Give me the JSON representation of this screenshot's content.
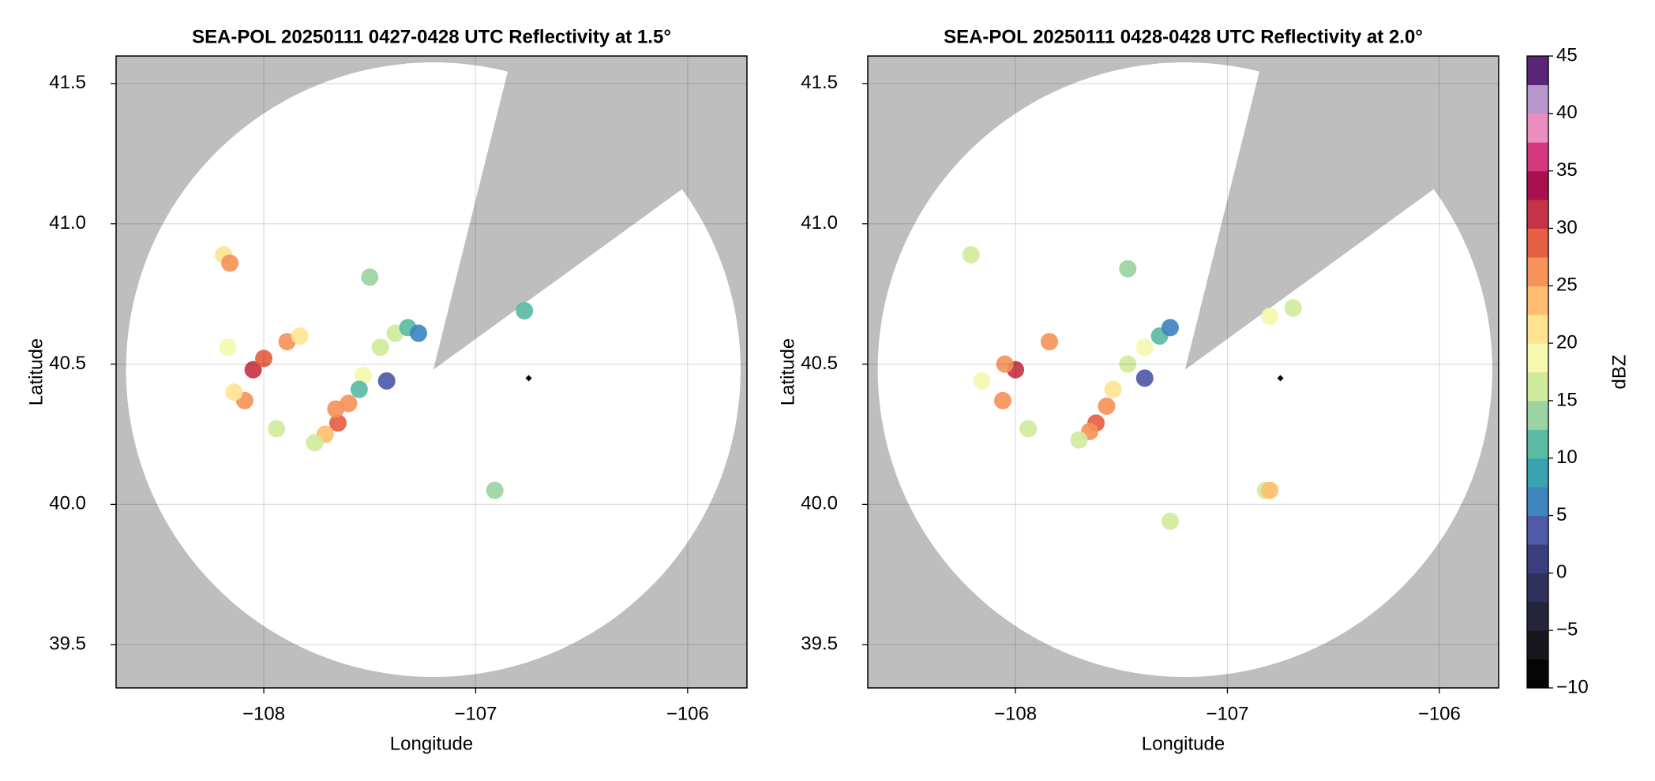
{
  "chart_data": [
    {
      "type": "radar-ppi",
      "title": "SEA-POL 20250111 0427-0428 UTC Reflectivity at 1.5°",
      "xlabel": "Longitude",
      "ylabel": "Latitude",
      "xlim": [
        -108.697,
        -105.72
      ],
      "ylim": [
        39.346,
        41.598
      ],
      "xticks": [
        {
          "value": -108,
          "label": "−108"
        },
        {
          "value": -107,
          "label": "−107"
        },
        {
          "value": -106,
          "label": "−106"
        }
      ],
      "yticks": [
        {
          "value": 39.5,
          "label": "39.5"
        },
        {
          "value": 40,
          "label": "40.0"
        },
        {
          "value": 40.5,
          "label": "40.5"
        },
        {
          "value": 41,
          "label": "41.0"
        },
        {
          "value": 41.5,
          "label": "41.5"
        }
      ],
      "grid": true,
      "coverage": {
        "center": [
          -107.2,
          40.48
        ],
        "radius": [
          1.45,
          1.095
        ],
        "blocked_azimuth": [
          14,
          54
        ]
      },
      "marker": {
        "x": -106.75,
        "y": 40.45
      },
      "echoes": {
        "x": [
          -108.19,
          -108.16,
          -108.05,
          -108.0,
          -108.09,
          -108.14,
          -107.89,
          -107.83,
          -108.17,
          -107.94,
          -107.65,
          -107.71,
          -107.6,
          -107.66,
          -107.53,
          -107.55,
          -107.45,
          -107.38,
          -107.32,
          -107.27,
          -107.42,
          -107.76,
          -107.5,
          -106.77,
          -106.91
        ],
        "y": [
          40.89,
          40.86,
          40.48,
          40.52,
          40.37,
          40.4,
          40.58,
          40.6,
          40.56,
          40.27,
          40.29,
          40.25,
          40.36,
          40.34,
          40.46,
          40.41,
          40.56,
          40.61,
          40.63,
          40.61,
          40.44,
          40.22,
          40.81,
          40.69,
          40.05
        ],
        "values": [
          22,
          27,
          31,
          28,
          27,
          22,
          25,
          20,
          19,
          17,
          28,
          24,
          25,
          27,
          18,
          12,
          16,
          17,
          11,
          5,
          4,
          16,
          14,
          12,
          14
        ]
      }
    },
    {
      "type": "radar-ppi",
      "title": "SEA-POL 20250111 0428-0428 UTC Reflectivity at 2.0°",
      "xlabel": "Longitude",
      "ylabel": "Latitude",
      "xlim": [
        -108.697,
        -105.72
      ],
      "ylim": [
        39.346,
        41.598
      ],
      "xticks": [
        {
          "value": -108,
          "label": "−108"
        },
        {
          "value": -107,
          "label": "−107"
        },
        {
          "value": -106,
          "label": "−106"
        }
      ],
      "yticks": [
        {
          "value": 39.5,
          "label": "39.5"
        },
        {
          "value": 40,
          "label": "40.0"
        },
        {
          "value": 40.5,
          "label": "40.5"
        },
        {
          "value": 41,
          "label": "41.0"
        },
        {
          "value": 41.5,
          "label": "41.5"
        }
      ],
      "grid": true,
      "coverage": {
        "center": [
          -107.2,
          40.48
        ],
        "radius": [
          1.45,
          1.095
        ],
        "blocked_azimuth": [
          14,
          54
        ]
      },
      "marker": {
        "x": -106.75,
        "y": 40.45
      },
      "echoes": {
        "x": [
          -108.21,
          -108.0,
          -108.05,
          -108.06,
          -108.16,
          -107.84,
          -107.94,
          -107.62,
          -107.65,
          -107.57,
          -107.54,
          -107.47,
          -107.39,
          -107.32,
          -107.27,
          -107.39,
          -107.7,
          -107.47,
          -106.8,
          -106.69,
          -106.82,
          -106.8,
          -107.27
        ],
        "y": [
          40.89,
          40.48,
          40.5,
          40.37,
          40.44,
          40.58,
          40.27,
          40.29,
          40.26,
          40.35,
          40.41,
          40.5,
          40.56,
          40.6,
          40.63,
          40.45,
          40.23,
          40.84,
          40.67,
          40.7,
          40.05,
          40.05,
          39.94
        ],
        "values": [
          17,
          31,
          27,
          27,
          19,
          25,
          16,
          29,
          26,
          27,
          21,
          15,
          18,
          10,
          6,
          4,
          15,
          14,
          19,
          17,
          17,
          24,
          17
        ]
      }
    },
    {
      "type": "colorbar",
      "label": "dBZ",
      "lim": [
        -10,
        45
      ],
      "ticks": [
        {
          "value": -10,
          "label": "−10"
        },
        {
          "value": -5,
          "label": "−5"
        },
        0,
        5,
        10,
        15,
        20,
        25,
        30,
        35,
        40,
        45
      ],
      "colors": [
        "#050505",
        "#17171d",
        "#25253a",
        "#30315a",
        "#3c3f7e",
        "#4f5aa8",
        "#3f86c0",
        "#3aa3b0",
        "#5cbba3",
        "#9bd4a3",
        "#d0ea9c",
        "#f5f8ad",
        "#fee491",
        "#fdbf6f",
        "#f6925a",
        "#e55f43",
        "#c83447",
        "#a8114f",
        "#d6387f",
        "#ea8fbf",
        "#b996cb",
        "#5a2477"
      ]
    }
  ]
}
